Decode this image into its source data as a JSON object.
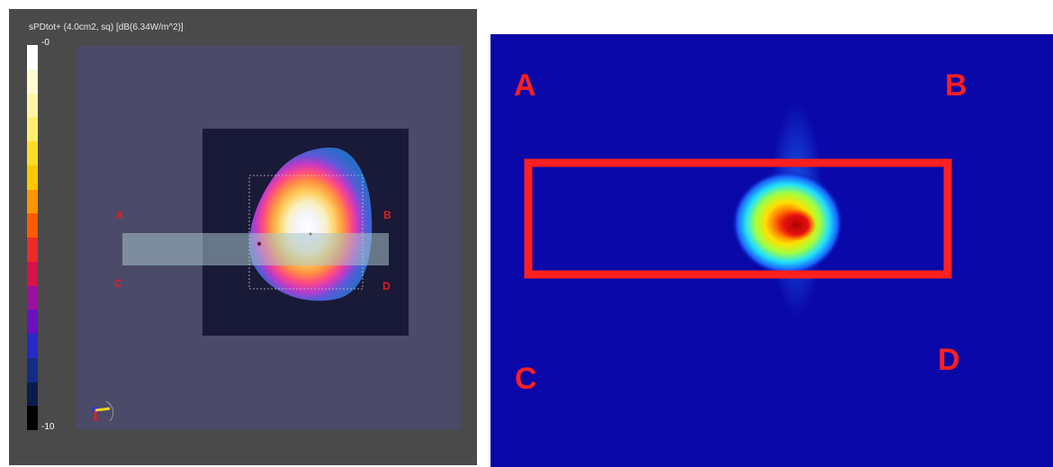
{
  "left_panel": {
    "title": "sPDtot+ (4.0cm2, sq) [dB(6.34W/m^2)]",
    "scale_max_label": "-0",
    "scale_min_label": "-10",
    "colorbar_colors": [
      "#ffffff",
      "#fffad0",
      "#fff5a8",
      "#ffee6e",
      "#ffdc28",
      "#ffc800",
      "#ff9600",
      "#ff5a00",
      "#ee2a28",
      "#d41448",
      "#9a10a0",
      "#6a10c0",
      "#2828c8",
      "#142c86",
      "#0c1c4a",
      "#000000"
    ],
    "markers": {
      "a": "A",
      "b": "B",
      "c": "C",
      "d": "D"
    },
    "icons": [
      "axes-orientation-icon"
    ]
  },
  "right_panel": {
    "markers": {
      "a": "A",
      "b": "B",
      "c": "C",
      "d": "D"
    },
    "accent_color": "#ff2020",
    "background_color": "#0a08a8"
  }
}
